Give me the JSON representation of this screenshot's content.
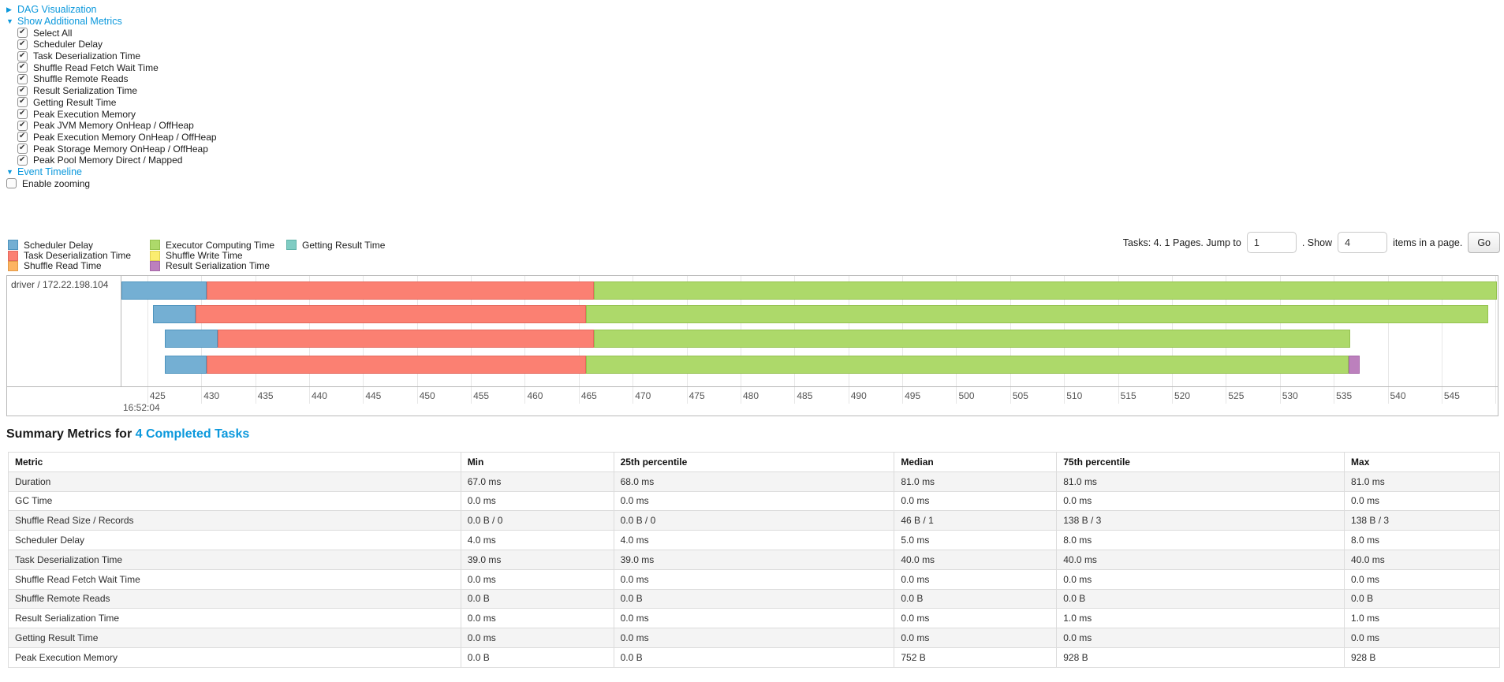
{
  "controls": {
    "dag_link": {
      "arrow": "▶",
      "label": "DAG Visualization"
    },
    "additional_metrics_link": {
      "arrow": "▼",
      "label": "Show Additional Metrics"
    },
    "metric_checkboxes": [
      {
        "label": "Select All",
        "checked": true
      },
      {
        "label": "Scheduler Delay",
        "checked": true
      },
      {
        "label": "Task Deserialization Time",
        "checked": true
      },
      {
        "label": "Shuffle Read Fetch Wait Time",
        "checked": true
      },
      {
        "label": "Shuffle Remote Reads",
        "checked": true
      },
      {
        "label": "Result Serialization Time",
        "checked": true
      },
      {
        "label": "Getting Result Time",
        "checked": true
      },
      {
        "label": "Peak Execution Memory",
        "checked": true
      },
      {
        "label": "Peak JVM Memory OnHeap / OffHeap",
        "checked": true
      },
      {
        "label": "Peak Execution Memory OnHeap / OffHeap",
        "checked": true
      },
      {
        "label": "Peak Storage Memory OnHeap / OffHeap",
        "checked": true
      },
      {
        "label": "Peak Pool Memory Direct / Mapped",
        "checked": true
      }
    ],
    "event_timeline_link": {
      "arrow": "▼",
      "label": "Event Timeline"
    },
    "enable_zooming": {
      "label": "Enable zooming",
      "checked": false
    }
  },
  "colors": {
    "scheduler_delay": {
      "fill": "#74AFD3",
      "border": "#4E94BE"
    },
    "task_deserialization": {
      "fill": "#FB8072",
      "border": "#E5685C"
    },
    "shuffle_read": {
      "fill": "#FDB462",
      "border": "#E39A48"
    },
    "executor_computing": {
      "fill": "#ADD96A",
      "border": "#94C24F"
    },
    "shuffle_write": {
      "fill": "#FBED70",
      "border": "#E0D254"
    },
    "result_serialization": {
      "fill": "#BC80BD",
      "border": "#A667A8"
    },
    "getting_result": {
      "fill": "#7FCCC3",
      "border": "#5FB2A8"
    }
  },
  "legend": {
    "columns": [
      [
        {
          "type": "scheduler_delay",
          "label": "Scheduler Delay"
        },
        {
          "type": "task_deserialization",
          "label": "Task Deserialization Time"
        },
        {
          "type": "shuffle_read",
          "label": "Shuffle Read Time"
        }
      ],
      [
        {
          "type": "executor_computing",
          "label": "Executor Computing Time"
        },
        {
          "type": "shuffle_write",
          "label": "Shuffle Write Time"
        },
        {
          "type": "result_serialization",
          "label": "Result Serialization Time"
        }
      ],
      [
        {
          "type": "getting_result",
          "label": "Getting Result Time"
        }
      ]
    ]
  },
  "pagination": {
    "label_tasks": "Tasks: 4. 1 Pages. Jump to",
    "jump_value": "1",
    "label_show": ". Show",
    "show_value": "4",
    "label_items": "items in a page.",
    "go_label": "Go"
  },
  "timeline": {
    "group_label": "driver / 172.22.198.104",
    "axis": {
      "min": 422.6,
      "max": 550.2,
      "ticks_start": 425,
      "ticks_end": 550,
      "tick_step": 5,
      "major_label": "16:52:04"
    },
    "tasks": [
      {
        "segments": [
          {
            "type": "scheduler_delay",
            "start": 422.6,
            "end": 430.5
          },
          {
            "type": "task_deserialization",
            "start": 430.5,
            "end": 466.4
          },
          {
            "type": "executor_computing",
            "start": 466.4,
            "end": 550.1
          }
        ]
      },
      {
        "segments": [
          {
            "type": "scheduler_delay",
            "start": 425.5,
            "end": 429.5
          },
          {
            "type": "task_deserialization",
            "start": 429.5,
            "end": 465.7
          },
          {
            "type": "executor_computing",
            "start": 465.7,
            "end": 549.3
          }
        ]
      },
      {
        "segments": [
          {
            "type": "scheduler_delay",
            "start": 426.6,
            "end": 431.5
          },
          {
            "type": "task_deserialization",
            "start": 431.5,
            "end": 466.4
          },
          {
            "type": "executor_computing",
            "start": 466.4,
            "end": 536.5
          }
        ]
      },
      {
        "segments": [
          {
            "type": "scheduler_delay",
            "start": 426.6,
            "end": 430.5
          },
          {
            "type": "task_deserialization",
            "start": 430.5,
            "end": 465.7
          },
          {
            "type": "executor_computing",
            "start": 465.7,
            "end": 536.4
          },
          {
            "type": "result_serialization",
            "start": 536.4,
            "end": 537.4
          }
        ]
      }
    ]
  },
  "summary": {
    "title_prefix": "Summary Metrics for ",
    "title_link": "4 Completed Tasks"
  },
  "table": {
    "headers": [
      "Metric",
      "Min",
      "25th percentile",
      "Median",
      "75th percentile",
      "Max"
    ],
    "rows": [
      [
        "Duration",
        "67.0 ms",
        "68.0 ms",
        "81.0 ms",
        "81.0 ms",
        "81.0 ms"
      ],
      [
        "GC Time",
        "0.0 ms",
        "0.0 ms",
        "0.0 ms",
        "0.0 ms",
        "0.0 ms"
      ],
      [
        "Shuffle Read Size / Records",
        "0.0 B / 0",
        "0.0 B / 0",
        "46 B / 1",
        "138 B / 3",
        "138 B / 3"
      ],
      [
        "Scheduler Delay",
        "4.0 ms",
        "4.0 ms",
        "5.0 ms",
        "8.0 ms",
        "8.0 ms"
      ],
      [
        "Task Deserialization Time",
        "39.0 ms",
        "39.0 ms",
        "40.0 ms",
        "40.0 ms",
        "40.0 ms"
      ],
      [
        "Shuffle Read Fetch Wait Time",
        "0.0 ms",
        "0.0 ms",
        "0.0 ms",
        "0.0 ms",
        "0.0 ms"
      ],
      [
        "Shuffle Remote Reads",
        "0.0 B",
        "0.0 B",
        "0.0 B",
        "0.0 B",
        "0.0 B"
      ],
      [
        "Result Serialization Time",
        "0.0 ms",
        "0.0 ms",
        "0.0 ms",
        "1.0 ms",
        "1.0 ms"
      ],
      [
        "Getting Result Time",
        "0.0 ms",
        "0.0 ms",
        "0.0 ms",
        "0.0 ms",
        "0.0 ms"
      ],
      [
        "Peak Execution Memory",
        "0.0 B",
        "0.0 B",
        "752 B",
        "928 B",
        "928 B"
      ]
    ]
  }
}
